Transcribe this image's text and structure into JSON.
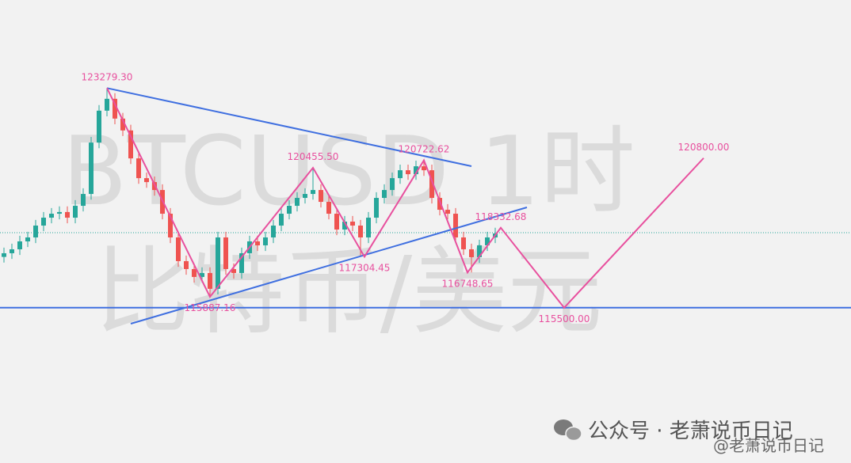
{
  "chart_data": {
    "type": "candlestick",
    "up_color": "#26a69a",
    "down_color": "#ef5350",
    "xlim": [
      -0.5,
      106.9
    ],
    "ylim": [
      110000,
      126400
    ],
    "x": [
      0,
      1,
      2,
      3,
      4,
      5,
      6,
      7,
      8,
      9,
      10,
      11,
      12,
      13,
      14,
      15,
      16,
      17,
      18,
      19,
      20,
      21,
      22,
      23,
      24,
      25,
      26,
      27,
      28,
      29,
      30,
      31,
      32,
      33,
      34,
      35,
      36,
      37,
      38,
      39,
      40,
      41,
      42,
      43,
      44,
      45,
      46,
      47,
      48,
      49,
      50,
      51,
      52,
      53,
      54,
      55,
      56,
      57,
      58,
      59,
      60,
      61,
      62
    ],
    "open": [
      117300,
      117430,
      117570,
      117850,
      117990,
      118410,
      118690,
      118830,
      118890,
      118690,
      119110,
      119530,
      121350,
      122480,
      122900,
      122200,
      121780,
      120790,
      120090,
      119950,
      119670,
      118830,
      117990,
      117150,
      116870,
      116590,
      116730,
      116170,
      117990,
      116870,
      116730,
      117430,
      117850,
      117710,
      117990,
      118410,
      118830,
      119110,
      119390,
      119530,
      119670,
      119250,
      118830,
      118270,
      118550,
      118410,
      117990,
      118690,
      119390,
      119670,
      120090,
      120370,
      120230,
      120510,
      120370,
      119390,
      118970,
      118830,
      117990,
      117570,
      117290,
      117710,
      117990
    ],
    "high": [
      117630,
      117770,
      118050,
      118190,
      118610,
      118890,
      119030,
      119090,
      119090,
      119310,
      119730,
      121550,
      122680,
      123279.3,
      123100,
      122400,
      121980,
      120990,
      120290,
      120150,
      119870,
      119030,
      118190,
      117350,
      117070,
      116930,
      116930,
      118190,
      118190,
      117070,
      117630,
      118050,
      118050,
      118190,
      118610,
      119030,
      119310,
      119590,
      119730,
      120455.5,
      119870,
      119450,
      119030,
      118750,
      118750,
      118610,
      118890,
      119590,
      119870,
      120290,
      120570,
      120570,
      120710,
      120722.62,
      120570,
      119590,
      119170,
      119030,
      118190,
      117770,
      117910,
      118190,
      118332.68
    ],
    "low": [
      117100,
      117230,
      117370,
      117650,
      117790,
      118210,
      118490,
      118630,
      118490,
      118490,
      118910,
      119330,
      121150,
      122280,
      122000,
      121580,
      120590,
      119890,
      119750,
      119470,
      118630,
      117790,
      116950,
      116670,
      116390,
      116390,
      115887.16,
      115970,
      116670,
      116530,
      116530,
      117230,
      117510,
      117510,
      117790,
      118210,
      118630,
      118910,
      119190,
      119330,
      119050,
      118630,
      118070,
      118070,
      118210,
      117304.45,
      117790,
      118490,
      119190,
      119470,
      119890,
      120030,
      120030,
      120170,
      119190,
      118770,
      118630,
      117790,
      117370,
      116748.65,
      117090,
      117510,
      117790
    ],
    "close": [
      117430,
      117570,
      117850,
      117990,
      118410,
      118690,
      118830,
      118890,
      118690,
      119110,
      119530,
      121350,
      122480,
      122900,
      122200,
      121780,
      120790,
      120090,
      119950,
      119670,
      118830,
      117990,
      117150,
      116870,
      116590,
      116730,
      116170,
      117990,
      116870,
      116730,
      117430,
      117850,
      117710,
      117990,
      118410,
      118830,
      119110,
      119390,
      119530,
      119670,
      119250,
      118830,
      118270,
      118550,
      118410,
      117990,
      118690,
      119390,
      119670,
      120090,
      120370,
      120230,
      120510,
      120370,
      119390,
      118970,
      118830,
      117990,
      117570,
      117290,
      117710,
      117990,
      118130
    ],
    "zigzag": {
      "color": "#e8509e",
      "x": [
        13,
        26,
        39,
        45.5,
        53,
        58.5,
        62.7,
        70.7,
        88.3
      ],
      "y": [
        123279.3,
        115887.16,
        120455.5,
        117304.45,
        120722.62,
        116748.65,
        118332.68,
        115500,
        120800
      ],
      "value_labels": [
        "123279.30",
        "115887.16",
        "120455.50",
        "117304.45",
        "120722.62",
        "116748.65",
        "118332.68",
        "115500.00",
        "120800.00"
      ]
    },
    "trendlines": [
      {
        "color": "#3f6fe0",
        "x": [
          13,
          59
        ],
        "y": [
          123279.3,
          120513
        ]
      },
      {
        "color": "#3f6fe0",
        "x": [
          16,
          66
        ],
        "y": [
          114934,
          119055
        ]
      }
    ],
    "hline": {
      "value": 115500,
      "color": "#3f6fe0"
    },
    "price_line": {
      "value": 118158,
      "color": "#26a69a"
    },
    "watermark": [
      "BTCUSD 1时",
      "比特币/美元"
    ],
    "footer": [
      "公众号 · 老萧说币日记",
      "@老萧说币日记"
    ]
  }
}
